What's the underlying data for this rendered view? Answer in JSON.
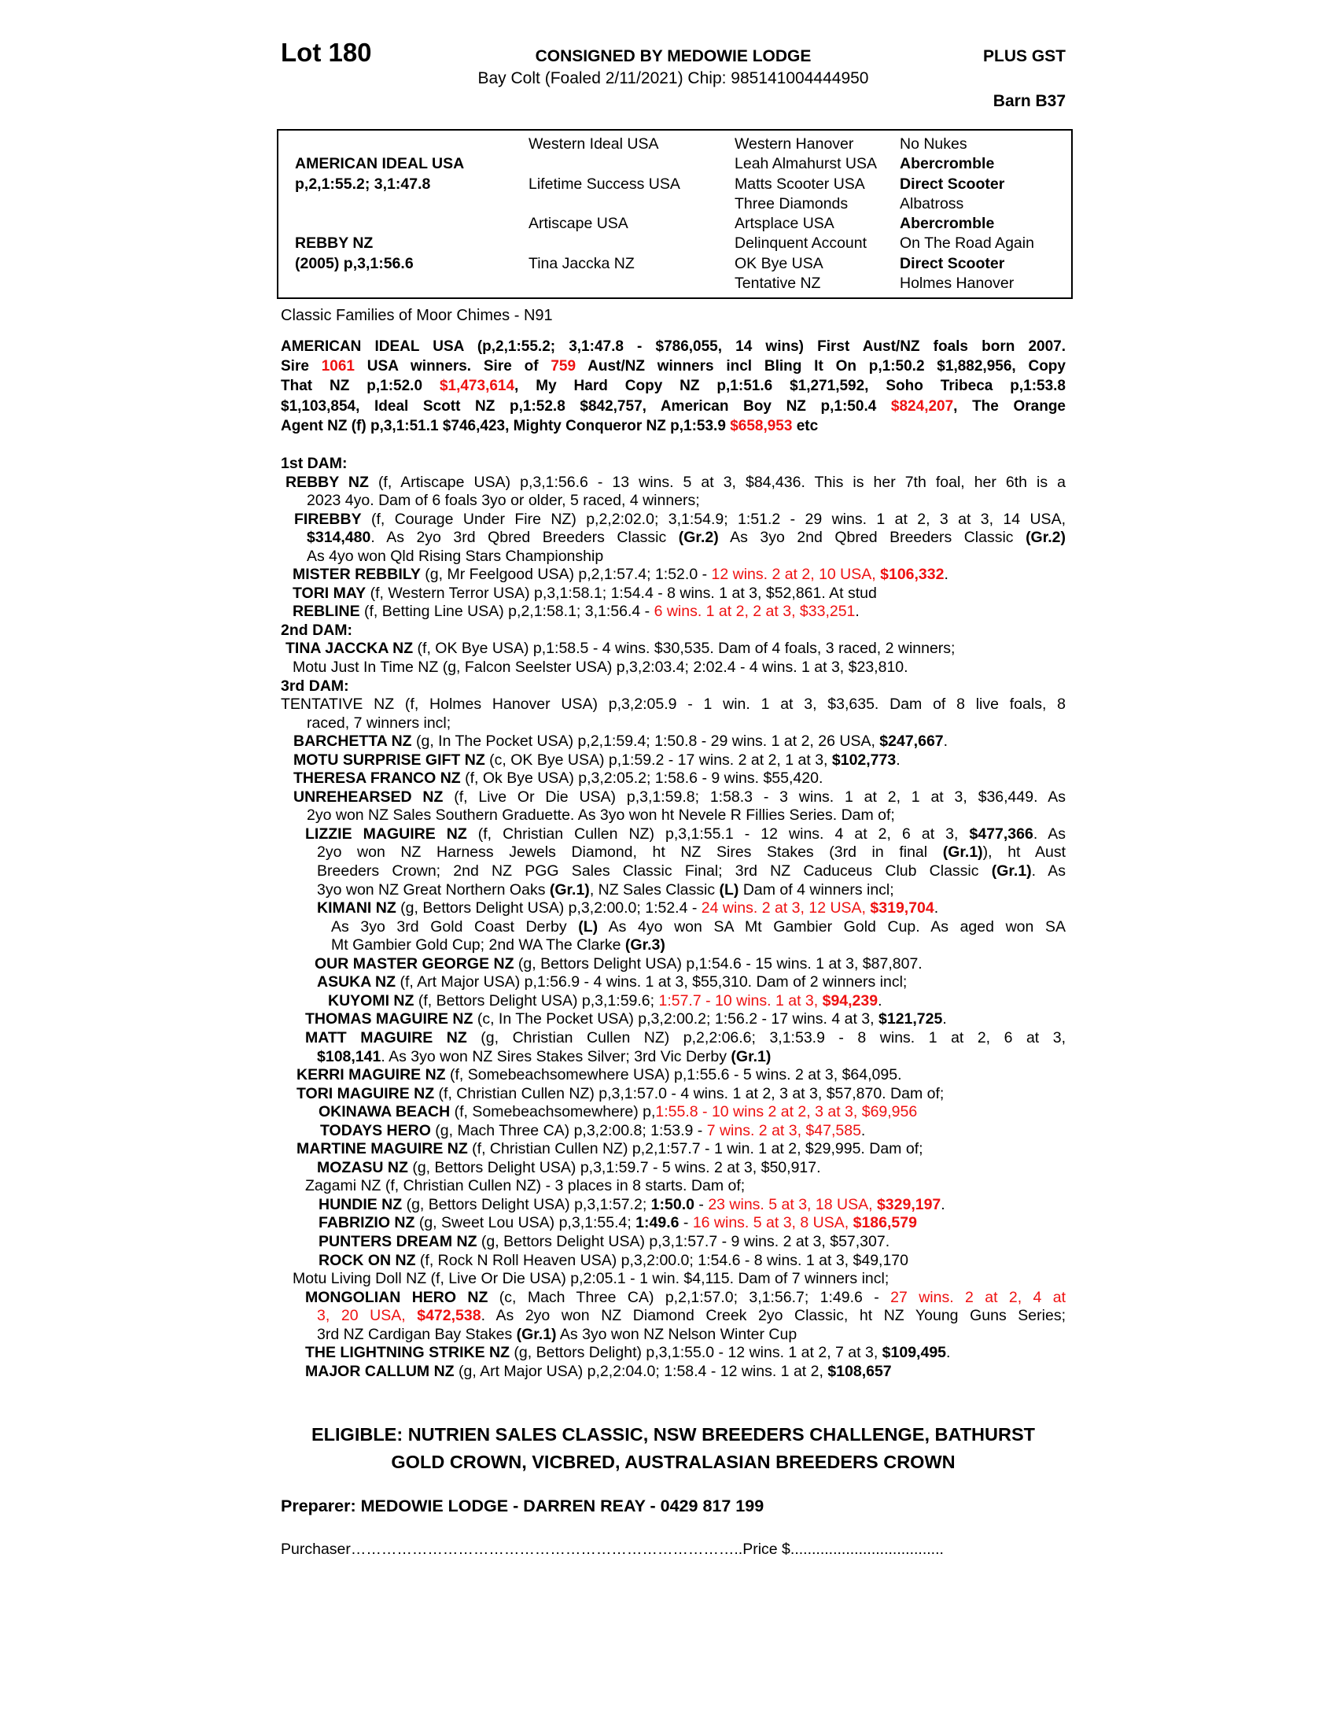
{
  "colors": {
    "red": "#ee1111",
    "ink": "#000000",
    "paper": "#ffffff"
  },
  "header": {
    "lot": "Lot 180",
    "consigned": "CONSIGNED BY MEDOWIE LODGE",
    "plus_gst": "PLUS GST",
    "foaling": "Bay Colt (Foaled 2/11/2021) Chip: 985141004444950",
    "barn": "Barn B37"
  },
  "pedigree": {
    "col1": [
      {
        "seg": []
      },
      {
        "seg": [
          {
            "t": "AMERICAN IDEAL USA",
            "s": "b"
          }
        ]
      },
      {
        "seg": [
          {
            "t": "p,2,1:55.2; 3,1:47.8",
            "s": "b"
          }
        ]
      },
      {
        "seg": []
      },
      {
        "seg": []
      },
      {
        "seg": [
          {
            "t": "REBBY NZ",
            "s": "b"
          }
        ]
      },
      {
        "seg": [
          {
            "t": "(2005) p,3,1:56.6",
            "s": "b"
          }
        ]
      },
      {
        "seg": []
      }
    ],
    "col2": [
      {
        "seg": [
          {
            "t": "Western Ideal USA"
          }
        ]
      },
      {
        "seg": []
      },
      {
        "seg": [
          {
            "t": "Lifetime Success USA"
          }
        ]
      },
      {
        "seg": []
      },
      {
        "seg": [
          {
            "t": "Artiscape USA"
          }
        ]
      },
      {
        "seg": []
      },
      {
        "seg": [
          {
            "t": "Tina Jaccka NZ"
          }
        ]
      },
      {
        "seg": []
      }
    ],
    "col3": [
      {
        "seg": [
          {
            "t": "Western Hanover"
          }
        ]
      },
      {
        "seg": [
          {
            "t": "Leah Almahurst USA"
          }
        ]
      },
      {
        "seg": [
          {
            "t": "Matts Scooter USA"
          }
        ]
      },
      {
        "seg": [
          {
            "t": "Three Diamonds"
          }
        ]
      },
      {
        "seg": [
          {
            "t": "Artsplace USA"
          }
        ]
      },
      {
        "seg": [
          {
            "t": "Delinquent Account"
          }
        ]
      },
      {
        "seg": [
          {
            "t": "OK Bye USA"
          }
        ]
      },
      {
        "seg": [
          {
            "t": "Tentative NZ"
          }
        ]
      }
    ],
    "col4": [
      {
        "seg": [
          {
            "t": "No Nukes"
          }
        ]
      },
      {
        "seg": [
          {
            "t": "Abercromble",
            "s": "b"
          }
        ]
      },
      {
        "seg": [
          {
            "t": "Direct Scooter",
            "s": "b"
          }
        ]
      },
      {
        "seg": [
          {
            "t": "Albatross"
          }
        ]
      },
      {
        "seg": [
          {
            "t": "Abercromble",
            "s": "b"
          }
        ]
      },
      {
        "seg": [
          {
            "t": "On The Road Again"
          }
        ]
      },
      {
        "seg": [
          {
            "t": "Direct Scooter",
            "s": "b"
          }
        ]
      },
      {
        "seg": [
          {
            "t": "Holmes Hanover"
          }
        ]
      }
    ]
  },
  "family_note": "Classic Families of Moor Chimes - N91",
  "sire_lines": [
    {
      "j": true,
      "seg": [
        {
          "t": "AMERICAN IDEAL USA (p,2,1:55.2; 3,1:47.8 - $786,055, 14 wins) First Aust/NZ foals born 2007."
        }
      ]
    },
    {
      "j": true,
      "seg": [
        {
          "t": "Sire "
        },
        {
          "t": "1061",
          "s": "r"
        },
        {
          "t": " USA winners. Sire of "
        },
        {
          "t": "759",
          "s": "r"
        },
        {
          "t": " Aust/NZ winners incl Bling It On p,1:50.2 $1,882,956, Copy"
        }
      ]
    },
    {
      "j": true,
      "seg": [
        {
          "t": "That NZ p,1:52.0 "
        },
        {
          "t": "$1,473,614",
          "s": "r"
        },
        {
          "t": ", My Hard Copy NZ p,1:51.6 $1,271,592, Soho Tribeca p,1:53.8"
        }
      ]
    },
    {
      "j": true,
      "seg": [
        {
          "t": "$1,103,854, Ideal Scott NZ p,1:52.8 $842,757, American Boy NZ p,1:50.4 "
        },
        {
          "t": "$824,207",
          "s": "r"
        },
        {
          "t": ", The Orange"
        }
      ]
    },
    {
      "seg": [
        {
          "t": "Agent NZ (f) p,3,1:51.1 $746,423, Mighty Conqueror NZ p,1:53.9 "
        },
        {
          "t": "$658,953",
          "s": "r"
        },
        {
          "t": " etc"
        }
      ]
    }
  ],
  "body_lines": [
    {
      "ind": 0,
      "seg": [
        {
          "t": "1st DAM:",
          "s": "b"
        }
      ]
    },
    {
      "ind": 6,
      "j": true,
      "seg": [
        {
          "t": "REBBY NZ",
          "s": "b"
        },
        {
          "t": " (f, Artiscape USA) p,3,1:56.6 - 13 wins. 5 at 3, $84,436. This is her 7th foal, her 6th is a"
        }
      ]
    },
    {
      "ind": 33,
      "seg": [
        {
          "t": "2023 4yo. Dam of 6 foals 3yo or older, 5 raced, 4 winners;"
        }
      ]
    },
    {
      "ind": 17,
      "j": true,
      "seg": [
        {
          "t": "FIREBBY",
          "s": "b"
        },
        {
          "t": " (f, Courage Under Fire NZ) p,2,2:02.0; 3,1:54.9; 1:51.2 - 29 wins. 1 at 2, 3 at 3, 14 USA,"
        }
      ]
    },
    {
      "ind": 33,
      "j": true,
      "seg": [
        {
          "t": "$314,480",
          "s": "b"
        },
        {
          "t": ". As 2yo 3rd Qbred Breeders Classic "
        },
        {
          "t": "(Gr.2)",
          "s": "b"
        },
        {
          "t": " As 3yo 2nd Qbred Breeders Classic "
        },
        {
          "t": "(Gr.2)",
          "s": "b"
        }
      ]
    },
    {
      "ind": 33,
      "seg": [
        {
          "t": "As 4yo won Qld Rising Stars Championship"
        }
      ]
    },
    {
      "ind": 15,
      "seg": [
        {
          "t": "MISTER REBBILY",
          "s": "b"
        },
        {
          "t": " (g, Mr Feelgood USA) p,2,1:57.4; 1:52.0 - "
        },
        {
          "t": "12 wins. 2 at 2, 10 USA, ",
          "s": "r"
        },
        {
          "t": "$106,332",
          "s": "br"
        },
        {
          "t": "."
        }
      ]
    },
    {
      "ind": 15,
      "seg": [
        {
          "t": "TORI MAY",
          "s": "b"
        },
        {
          "t": " (f, Western Terror USA) p,3,1:58.1; 1:54.4 - 8 wins. 1 at 3, $52,861. At stud"
        }
      ]
    },
    {
      "ind": 15,
      "seg": [
        {
          "t": "REBLINE",
          "s": "b"
        },
        {
          "t": " (f, Betting Line USA) p,2,1:58.1; 3,1:56.4 - "
        },
        {
          "t": "6 wins. 1 at 2, 2 at 3, $33,251",
          "s": "r"
        },
        {
          "t": "."
        }
      ]
    },
    {
      "ind": 0,
      "seg": [
        {
          "t": "2nd DAM:",
          "s": "b"
        }
      ]
    },
    {
      "ind": 6,
      "seg": [
        {
          "t": "TINA JACCKA NZ",
          "s": "b"
        },
        {
          "t": " (f, OK Bye USA) p,1:58.5 - 4 wins. $30,535. Dam of 4 foals, 3 raced, 2 winners;"
        }
      ]
    },
    {
      "ind": 15,
      "seg": [
        {
          "t": "Motu Just In Time NZ (g, Falcon Seelster USA) p,3,2:03.4; 2:02.4 - 4 wins. 1 at 3, $23,810."
        }
      ]
    },
    {
      "ind": 0,
      "seg": [
        {
          "t": "3rd DAM:",
          "s": "b"
        }
      ]
    },
    {
      "ind": 0,
      "j": true,
      "seg": [
        {
          "t": "TENTATIVE NZ (f, Holmes Hanover USA) p,3,2:05.9 - 1 win. 1 at 3, $3,635. Dam of 8 live foals, 8"
        }
      ]
    },
    {
      "ind": 33,
      "seg": [
        {
          "t": "raced, 7 winners incl;"
        }
      ]
    },
    {
      "ind": 16,
      "seg": [
        {
          "t": "BARCHETTA NZ",
          "s": "b"
        },
        {
          "t": " (g, In The Pocket USA) p,2,1:59.4; 1:50.8 - 29 wins. 1 at 2, 26 USA, "
        },
        {
          "t": "$247,667",
          "s": "b"
        },
        {
          "t": "."
        }
      ]
    },
    {
      "ind": 16,
      "seg": [
        {
          "t": "MOTU SURPRISE GIFT NZ",
          "s": "b"
        },
        {
          "t": " (c, OK Bye USA) p,1:59.2 - 17 wins. 2 at 2, 1 at 3, "
        },
        {
          "t": "$102,773",
          "s": "b"
        },
        {
          "t": "."
        }
      ]
    },
    {
      "ind": 16,
      "seg": [
        {
          "t": "THERESA FRANCO NZ",
          "s": "b"
        },
        {
          "t": " (f, Ok Bye USA) p,3,2:05.2; 1:58.6 - 9 wins. $55,420."
        }
      ]
    },
    {
      "ind": 16,
      "j": true,
      "seg": [
        {
          "t": "UNREHEARSED NZ",
          "s": "b"
        },
        {
          "t": " (f, Live Or Die USA) p,3,1:59.8; 1:58.3 - 3 wins. 1 at 2, 1 at 3, $36,449. As"
        }
      ]
    },
    {
      "ind": 33,
      "seg": [
        {
          "t": "2yo won NZ Sales Southern Graduette. As 3yo won ht Nevele R Fillies Series. Dam of;"
        }
      ]
    },
    {
      "ind": 31,
      "j": true,
      "seg": [
        {
          "t": "LIZZIE MAGUIRE NZ",
          "s": "b"
        },
        {
          "t": " (f, Christian Cullen NZ) p,3,1:55.1 - 12 wins. 4 at 2, 6 at 3, "
        },
        {
          "t": "$477,366",
          "s": "b"
        },
        {
          "t": ". As"
        }
      ]
    },
    {
      "ind": 46,
      "j": true,
      "seg": [
        {
          "t": "2yo won NZ Harness Jewels Diamond, ht NZ Sires Stakes (3rd in final "
        },
        {
          "t": "(Gr.1)",
          "s": "b"
        },
        {
          "t": "), ht Aust"
        }
      ]
    },
    {
      "ind": 46,
      "j": true,
      "seg": [
        {
          "t": "Breeders Crown; 2nd NZ PGG Sales Classic Final; 3rd NZ Caduceus Club Classic "
        },
        {
          "t": "(Gr.1)",
          "s": "b"
        },
        {
          "t": ". As"
        }
      ]
    },
    {
      "ind": 46,
      "seg": [
        {
          "t": "3yo won NZ Great Northern Oaks "
        },
        {
          "t": "(Gr.1)",
          "s": "b"
        },
        {
          "t": ", NZ Sales Classic "
        },
        {
          "t": "(L)",
          "s": "b"
        },
        {
          "t": " Dam of 4 winners incl;"
        }
      ]
    },
    {
      "ind": 46,
      "seg": [
        {
          "t": "KIMANI NZ",
          "s": "b"
        },
        {
          "t": " (g, Bettors Delight USA) p,3,2:00.0; 1:52.4 - "
        },
        {
          "t": "24 wins. 2 at 3, 12 USA, ",
          "s": "r"
        },
        {
          "t": "$319,704",
          "s": "br"
        },
        {
          "t": "."
        }
      ]
    },
    {
      "ind": 64,
      "j": true,
      "seg": [
        {
          "t": "As 3yo 3rd Gold Coast Derby "
        },
        {
          "t": "(L)",
          "s": "b"
        },
        {
          "t": " As 4yo won SA Mt Gambier Gold Cup. As aged won SA"
        }
      ]
    },
    {
      "ind": 64,
      "seg": [
        {
          "t": "Mt Gambier Gold Cup; 2nd WA The Clarke "
        },
        {
          "t": "(Gr.3)",
          "s": "b"
        }
      ]
    },
    {
      "ind": 43,
      "seg": [
        {
          "t": "OUR MASTER GEORGE NZ",
          "s": "b"
        },
        {
          "t": " (g, Bettors Delight USA) p,1:54.6 - 15 wins. 1 at 3, $87,807."
        }
      ]
    },
    {
      "ind": 46,
      "seg": [
        {
          "t": "ASUKA NZ",
          "s": "b"
        },
        {
          "t": " (f, Art Major USA) p,1:56.9 - 4 wins. 1 at 3, $55,310. Dam of 2 winners incl;"
        }
      ]
    },
    {
      "ind": 60,
      "seg": [
        {
          "t": "KUYOMI NZ",
          "s": "b"
        },
        {
          "t": " (f, Bettors Delight USA) p,3,1:59.6; "
        },
        {
          "t": "1:57.7 - 10 wins. 1 at 3, ",
          "s": "r"
        },
        {
          "t": "$94,239",
          "s": "br"
        },
        {
          "t": "."
        }
      ]
    },
    {
      "ind": 31,
      "seg": [
        {
          "t": "THOMAS MAGUIRE NZ",
          "s": "b"
        },
        {
          "t": " (c, In The Pocket USA) p,3,2:00.2; 1:56.2 - 17 wins. 4 at 3, "
        },
        {
          "t": "$121,725",
          "s": "b"
        },
        {
          "t": "."
        }
      ]
    },
    {
      "ind": 31,
      "j": true,
      "seg": [
        {
          "t": "MATT MAGUIRE NZ",
          "s": "b"
        },
        {
          "t": " (g, Christian Cullen NZ) p,2,2:06.6; 3,1:53.9 - 8 wins. 1 at 2, 6 at 3,"
        }
      ]
    },
    {
      "ind": 46,
      "seg": [
        {
          "t": "$108,141",
          "s": "b"
        },
        {
          "t": ". As 3yo won NZ Sires Stakes Silver; 3rd Vic Derby "
        },
        {
          "t": "(Gr.1)",
          "s": "b"
        }
      ]
    },
    {
      "ind": 20,
      "seg": [
        {
          "t": "KERRI MAGUIRE NZ",
          "s": "b"
        },
        {
          "t": " (f, Somebeachsomewhere USA) p,1:55.6 - 5 wins. 2 at 3, $64,095."
        }
      ]
    },
    {
      "ind": 20,
      "seg": [
        {
          "t": "TORI MAGUIRE NZ",
          "s": "b"
        },
        {
          "t": " (f, Christian Cullen NZ) p,3,1:57.0 - 4 wins. 1 at 2, 3 at 3, $57,870. Dam of;"
        }
      ]
    },
    {
      "ind": 48,
      "seg": [
        {
          "t": "OKINAWA BEACH",
          "s": "b"
        },
        {
          "t": " (f, Somebeachsomewhere) p,"
        },
        {
          "t": "1:55.8 - 10 wins 2 at 2, 3 at 3, $69,956",
          "s": "r"
        }
      ]
    },
    {
      "ind": 50,
      "seg": [
        {
          "t": "TODAYS HERO",
          "s": "b"
        },
        {
          "t": " (g, Mach Three CA) p,3,2:00.8; 1:53.9 - "
        },
        {
          "t": "7 wins. 2 at 3, $47,585",
          "s": "r"
        },
        {
          "t": "."
        }
      ]
    },
    {
      "ind": 20,
      "seg": [
        {
          "t": "MARTINE MAGUIRE NZ",
          "s": "b"
        },
        {
          "t": " (f, Christian Cullen NZ) p,2,1:57.7 - 1 win. 1 at 2, $29,995. Dam of;"
        }
      ]
    },
    {
      "ind": 46,
      "seg": [
        {
          "t": "MOZASU NZ",
          "s": "b"
        },
        {
          "t": " (g, Bettors Delight USA) p,3,1:59.7 - 5 wins. 2 at 3, $50,917."
        }
      ]
    },
    {
      "ind": 31,
      "seg": [
        {
          "t": "Zagami NZ (f, Christian Cullen NZ) - 3 places in 8 starts. Dam of;"
        }
      ]
    },
    {
      "ind": 48,
      "seg": [
        {
          "t": "HUNDIE NZ",
          "s": "b"
        },
        {
          "t": " (g, Bettors Delight USA) p,3,1:57.2; "
        },
        {
          "t": "1:50.0",
          "s": "b"
        },
        {
          "t": " - "
        },
        {
          "t": "23 wins. 5 at 3, 18 USA, ",
          "s": "r"
        },
        {
          "t": "$329,197",
          "s": "br"
        },
        {
          "t": "."
        }
      ]
    },
    {
      "ind": 48,
      "seg": [
        {
          "t": "FABRIZIO NZ",
          "s": "b"
        },
        {
          "t": " (g, Sweet Lou USA) p,3,1:55.4; "
        },
        {
          "t": "1:49.6",
          "s": "b"
        },
        {
          "t": " - "
        },
        {
          "t": "16 wins. 5 at 3, 8 USA, ",
          "s": "r"
        },
        {
          "t": "$186,579",
          "s": "br"
        }
      ]
    },
    {
      "ind": 48,
      "seg": [
        {
          "t": "PUNTERS DREAM NZ",
          "s": "b"
        },
        {
          "t": " (g, Bettors Delight USA) p,3,1:57.7 - 9 wins. 2 at 3, $57,307."
        }
      ]
    },
    {
      "ind": 48,
      "seg": [
        {
          "t": "ROCK ON NZ",
          "s": "b"
        },
        {
          "t": " (f, Rock N Roll Heaven USA) p,3,2:00.0; 1:54.6 - 8 wins. 1 at 3, $49,170"
        }
      ]
    },
    {
      "ind": 15,
      "seg": [
        {
          "t": "Motu Living Doll NZ (f, Live Or Die USA) p,2:05.1 - 1 win. $4,115. Dam of 7 winners incl;"
        }
      ]
    },
    {
      "ind": 31,
      "j": true,
      "seg": [
        {
          "t": "MONGOLIAN HERO NZ",
          "s": "b"
        },
        {
          "t": " (c, Mach Three CA) p,2,1:57.0; 3,1:56.7; 1:49.6 - "
        },
        {
          "t": "27 wins. 2 at 2, 4 at",
          "s": "r"
        }
      ]
    },
    {
      "ind": 46,
      "j": true,
      "seg": [
        {
          "t": "3, 20 USA, ",
          "s": "r"
        },
        {
          "t": "$472,538",
          "s": "br"
        },
        {
          "t": ". As 2yo won NZ Diamond Creek 2yo Classic, ht NZ Young Guns Series;"
        }
      ]
    },
    {
      "ind": 46,
      "seg": [
        {
          "t": "3rd NZ Cardigan Bay Stakes "
        },
        {
          "t": "(Gr.1)",
          "s": "b"
        },
        {
          "t": " As 3yo won NZ Nelson Winter Cup"
        }
      ]
    },
    {
      "ind": 31,
      "seg": [
        {
          "t": "THE LIGHTNING STRIKE NZ",
          "s": "b"
        },
        {
          "t": " (g, Bettors Delight) p,3,1:55.0 - 12 wins. 1 at 2, 7 at 3, "
        },
        {
          "t": "$109,495",
          "s": "b"
        },
        {
          "t": "."
        }
      ]
    },
    {
      "ind": 31,
      "seg": [
        {
          "t": "MAJOR CALLUM NZ",
          "s": "b"
        },
        {
          "t": " (g, Art Major USA) p,2,2:04.0; 1:58.4 - 12 wins. 1 at 2, "
        },
        {
          "t": "$108,657",
          "s": "b"
        }
      ]
    }
  ],
  "footer": {
    "eligible_line1": "ELIGIBLE: NUTRIEN SALES CLASSIC, NSW BREEDERS CHALLENGE, BATHURST",
    "eligible_line2": "GOLD CROWN, VICBRED, AUSTRALASIAN BREEDERS CROWN",
    "preparer": "Preparer: MEDOWIE LODGE - DARREN REAY - 0429 817 199",
    "purchaser_line": "Purchaser…………………………………………………………………..Price $...................................."
  }
}
